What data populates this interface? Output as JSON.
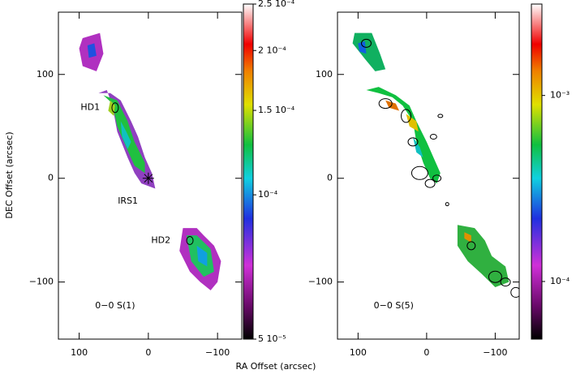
{
  "figure": {
    "xlabel": "RA Offset (arcsec)",
    "ylabel": "DEC Offset (arcsec)"
  },
  "chart_data": [
    {
      "type": "image",
      "xlim": [
        130,
        -135
      ],
      "ylim": [
        -155,
        160
      ],
      "xticks": [
        100,
        0,
        {
          "value": -100,
          "label": "−100"
        }
      ],
      "yticks": [
        {
          "value": -100,
          "label": "−100"
        },
        0,
        100
      ],
      "annotations": [
        "HD1",
        "IRS1",
        "HD2",
        "0−0 S(1)"
      ],
      "colorbar": {
        "scale": "log",
        "lim": [
          5e-05,
          0.00025
        ],
        "ticks": [
          {
            "value": 5e-05,
            "label": "5 10⁻⁵"
          },
          {
            "value": 0.0001,
            "label": "10⁻⁴"
          },
          {
            "value": 0.00015,
            "label": "1.5 10⁻⁴"
          },
          {
            "value": 0.0002,
            "label": "2 10⁻⁴"
          },
          {
            "value": 0.00025,
            "label": "2.5 10⁻⁴"
          }
        ]
      }
    },
    {
      "type": "image",
      "xlim": [
        130,
        -135
      ],
      "ylim": [
        -155,
        160
      ],
      "xticks": [
        100,
        0,
        {
          "value": -100,
          "label": "−100"
        }
      ],
      "yticks": [
        {
          "value": -100,
          "label": "−100"
        },
        0,
        100
      ],
      "annotations": [
        "0−0 S(5)"
      ],
      "colorbar": {
        "scale": "log",
        "lim": [
          4.9e-05,
          0.0031
        ],
        "ticks": [
          {
            "value": 0.0001,
            "label": "10⁻⁴"
          },
          {
            "value": 0.001,
            "label": "10⁻³"
          }
        ]
      }
    }
  ]
}
